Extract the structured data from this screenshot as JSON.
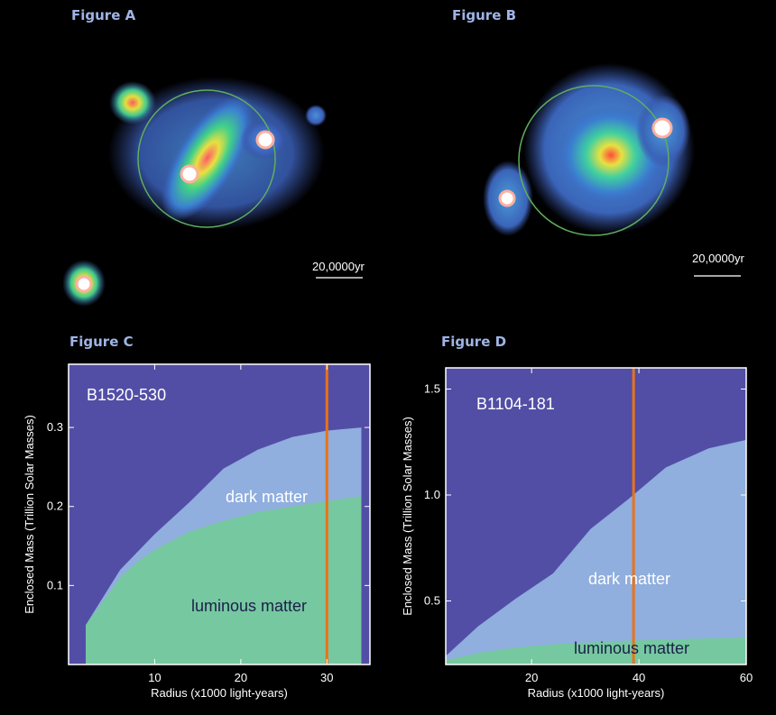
{
  "figure_a": {
    "title": "Figure A",
    "scale_label": "20,0000yr"
  },
  "figure_b": {
    "title": "Figure B",
    "scale_label": "20,0000yr"
  },
  "colors": {
    "plot_background": "#524ea6",
    "dark_matter": "#90aede",
    "luminous_matter": "#76c8a0",
    "marker_line": "#e8731a",
    "frame": "#ffffff"
  },
  "chart_data": [
    {
      "panel": "Figure C",
      "title": "Figure C",
      "type": "area",
      "plot_label": "B1520-530",
      "xlabel": "Radius (x1000 light-years)",
      "ylabel": "Enclosed Mass (Trillion Solar Masses)",
      "xlim": [
        0,
        35
      ],
      "ylim": [
        0,
        0.38
      ],
      "xticks": [
        10,
        20,
        30
      ],
      "yticks": [
        0.1,
        0.2,
        0.3
      ],
      "marker_x": 30,
      "series": [
        {
          "name": "dark matter",
          "x": [
            2,
            6,
            10,
            14,
            18,
            22,
            26,
            30,
            34
          ],
          "y": [
            0.05,
            0.12,
            0.165,
            0.205,
            0.248,
            0.272,
            0.288,
            0.296,
            0.3
          ]
        },
        {
          "name": "luminous matter",
          "x": [
            2,
            4,
            6,
            8,
            10,
            14,
            18,
            22,
            26,
            30,
            34
          ],
          "y": [
            0.05,
            0.08,
            0.11,
            0.13,
            0.145,
            0.168,
            0.182,
            0.193,
            0.2,
            0.207,
            0.213
          ]
        }
      ]
    },
    {
      "panel": "Figure D",
      "title": "Figure D",
      "type": "area",
      "plot_label": "B1104-181",
      "xlabel": "Radius (x1000 light-years)",
      "ylabel": "Enclosed Mass (Trillion Solar Masses)",
      "xlim": [
        4,
        60
      ],
      "ylim": [
        0.2,
        1.6
      ],
      "xticks": [
        20,
        40,
        60
      ],
      "yticks": [
        0.5,
        1.0,
        1.5
      ],
      "ytick_labels": [
        "0.5",
        "1.0",
        "1.5"
      ],
      "marker_x": 39,
      "series": [
        {
          "name": "dark matter",
          "x": [
            4,
            10,
            17,
            24,
            31,
            38,
            45,
            53,
            60
          ],
          "y": [
            0.24,
            0.38,
            0.51,
            0.63,
            0.84,
            0.98,
            1.13,
            1.22,
            1.26
          ]
        },
        {
          "name": "luminous matter",
          "x": [
            4,
            10,
            17,
            24,
            31,
            38,
            45,
            53,
            60
          ],
          "y": [
            0.22,
            0.255,
            0.28,
            0.295,
            0.305,
            0.312,
            0.318,
            0.323,
            0.327
          ]
        }
      ]
    }
  ]
}
